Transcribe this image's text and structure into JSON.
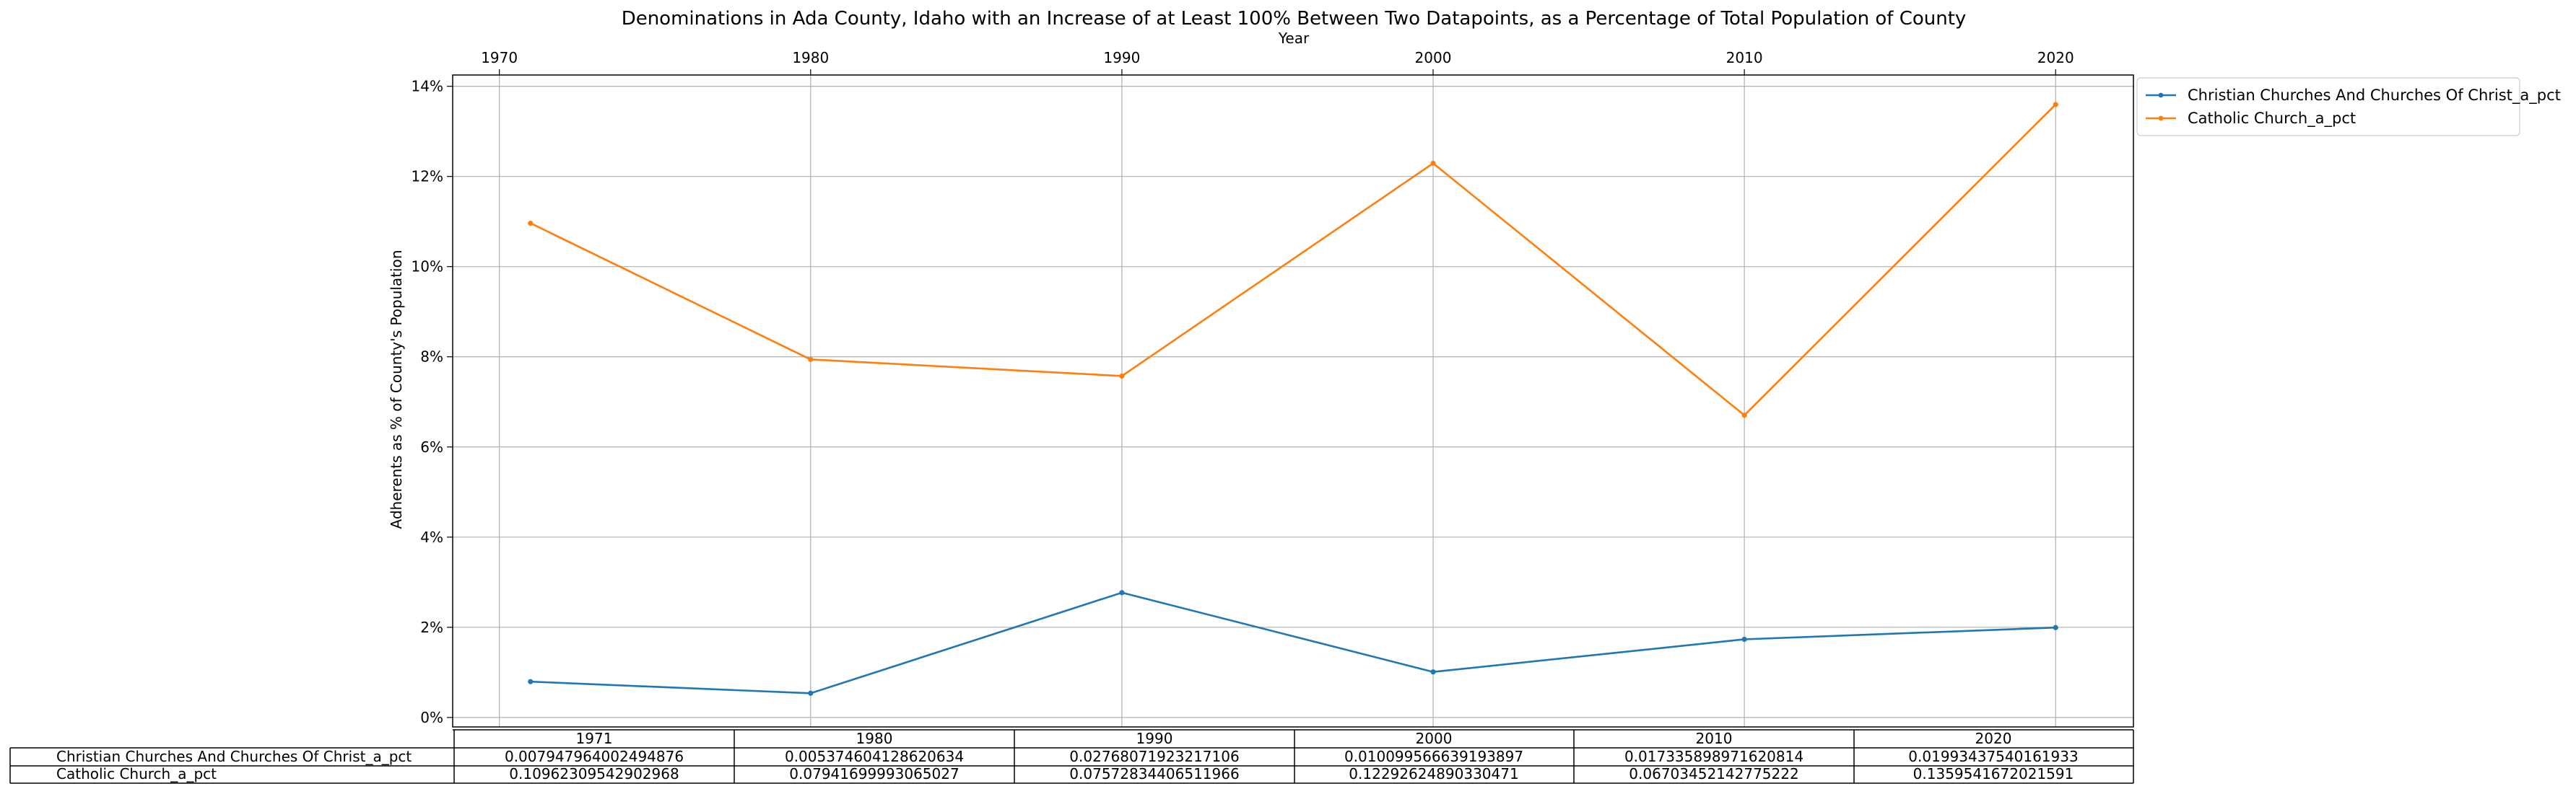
{
  "chart_data": {
    "type": "line",
    "title": "Denominations in Ada County, Idaho with an Increase of at Least 100% Between Two Datapoints, as a Percentage of Total Population of County",
    "xlabel": "Year",
    "ylabel": "Adherents as % of County's Population",
    "x": [
      1971,
      1980,
      1990,
      2000,
      2010,
      2020
    ],
    "x_ticks": [
      1970,
      1980,
      1990,
      2000,
      2010,
      2020
    ],
    "xlim": [
      1968.5,
      2022.5
    ],
    "y_ticks": [
      0,
      0.02,
      0.04,
      0.06,
      0.08,
      0.1,
      0.12,
      0.14
    ],
    "y_tick_labels": [
      "0%",
      "2%",
      "4%",
      "6%",
      "8%",
      "10%",
      "12%",
      "14%"
    ],
    "ylim": [
      -0.0021,
      0.1425
    ],
    "grid": true,
    "legend_position": "outside-upper-right",
    "series": [
      {
        "name": "Christian Churches And Churches Of Christ_a_pct",
        "color": "#1f77b4",
        "values": [
          0.007947964002494876,
          0.005374604128620634,
          0.02768071923217106,
          0.010099566639193897,
          0.017335898971620814,
          0.01993437540161933
        ]
      },
      {
        "name": "Catholic Church_a_pct",
        "color": "#ff7f0e",
        "values": [
          0.10962309542902968,
          0.07941699993065027,
          0.07572834406511966,
          0.12292624890330471,
          0.06703452142775222,
          0.1359541672021591
        ]
      }
    ]
  },
  "table": {
    "col_labels": [
      "1971",
      "1980",
      "1990",
      "2000",
      "2010",
      "2020"
    ],
    "rows": [
      {
        "label": "Christian Churches And Churches Of Christ_a_pct",
        "cells": [
          "0.007947964002494876",
          "0.005374604128620634",
          "0.02768071923217106",
          "0.010099566639193897",
          "0.017335898971620814",
          "0.01993437540161933"
        ]
      },
      {
        "label": "Catholic Church_a_pct",
        "cells": [
          "0.10962309542902968",
          "0.07941699993065027",
          "0.07572834406511966",
          "0.12292624890330471",
          "0.06703452142775222",
          "0.1359541672021591"
        ]
      }
    ]
  }
}
